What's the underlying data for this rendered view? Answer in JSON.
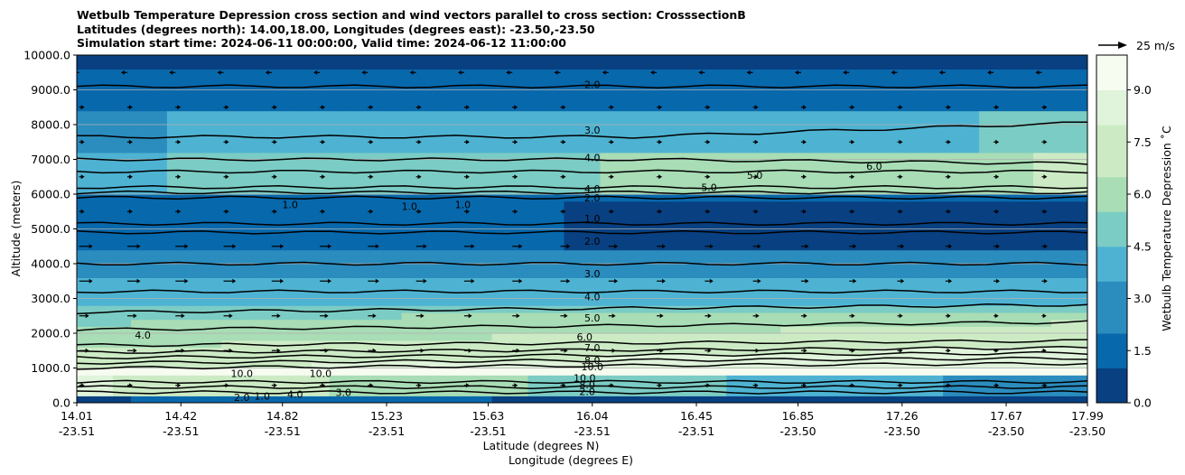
{
  "chart_data": {
    "type": "contour",
    "title_lines": [
      "Wetbulb Temperature Depression cross section and wind vectors parallel to cross section: CrosssectionB",
      "Latitudes (degrees north): 14.00,18.00, Longitudes (degrees east): -23.50,-23.50",
      "Simulation start time: 2024-06-11 00:00:00, Valid time: 2024-06-12 11:00:00"
    ],
    "ylabel": "Altitude (meters)",
    "xlabel": "Latitude (degrees N)",
    "xlabel2": "Longitude (degrees E)",
    "ylim": [
      0,
      10000
    ],
    "yticks": [
      "0.0",
      "1000.0",
      "2000.0",
      "3000.0",
      "4000.0",
      "5000.0",
      "6000.0",
      "7000.0",
      "8000.0",
      "9000.0",
      "10000.0"
    ],
    "ytick_values": [
      0,
      1000,
      2000,
      3000,
      4000,
      5000,
      6000,
      7000,
      8000,
      9000,
      10000
    ],
    "xlim": [
      14.01,
      17.99
    ],
    "xticks": [
      {
        "lat": "14.01",
        "lon": "-23.51",
        "value": 14.01
      },
      {
        "lat": "14.42",
        "lon": "-23.51",
        "value": 14.42
      },
      {
        "lat": "14.82",
        "lon": "-23.51",
        "value": 14.82
      },
      {
        "lat": "15.23",
        "lon": "-23.51",
        "value": 15.23
      },
      {
        "lat": "15.63",
        "lon": "-23.51",
        "value": 15.63
      },
      {
        "lat": "16.04",
        "lon": "-23.51",
        "value": 16.04
      },
      {
        "lat": "16.45",
        "lon": "-23.51",
        "value": 16.45
      },
      {
        "lat": "16.85",
        "lon": "-23.50",
        "value": 16.85
      },
      {
        "lat": "17.26",
        "lon": "-23.50",
        "value": 17.26
      },
      {
        "lat": "17.67",
        "lon": "-23.50",
        "value": 17.67
      },
      {
        "lat": "17.99",
        "lon": "-23.50",
        "value": 17.99
      }
    ],
    "colorbar": {
      "label": "Wetbulb Temperature Depression ˚C",
      "ticks": [
        "0.0",
        "1.5",
        "3.0",
        "4.5",
        "6.0",
        "7.5",
        "9.0"
      ],
      "tick_values": [
        0,
        1.5,
        3.0,
        4.5,
        6.0,
        7.5,
        9.0
      ],
      "range": [
        0,
        10
      ],
      "colors": [
        "#084081",
        "#0868ac",
        "#2b8cbe",
        "#4eb3d3",
        "#7bccc4",
        "#a8ddb5",
        "#ccebc5",
        "#e0f3db",
        "#f7fcf0"
      ]
    },
    "wind_key": "25 m/s",
    "contour_labels": [
      {
        "text": "2.0",
        "lat": 16.04,
        "alt": 9150
      },
      {
        "text": "3.0",
        "lat": 16.04,
        "alt": 7850
      },
      {
        "text": "4.0",
        "lat": 16.04,
        "alt": 7050
      },
      {
        "text": "4.0",
        "lat": 16.04,
        "alt": 6150
      },
      {
        "text": "2.0",
        "lat": 16.04,
        "alt": 5900
      },
      {
        "text": "2.0",
        "lat": 16.04,
        "alt": 4650
      },
      {
        "text": "3.0",
        "lat": 16.04,
        "alt": 3720
      },
      {
        "text": "4.0",
        "lat": 16.04,
        "alt": 3050
      },
      {
        "text": "5.0",
        "lat": 16.04,
        "alt": 2440
      },
      {
        "text": "6.0",
        "lat": 16.01,
        "alt": 1890
      },
      {
        "text": "7.0",
        "lat": 16.04,
        "alt": 1580
      },
      {
        "text": "8.0",
        "lat": 16.04,
        "alt": 1220
      },
      {
        "text": "10.0",
        "lat": 16.04,
        "alt": 1040
      },
      {
        "text": "10.0",
        "lat": 16.01,
        "alt": 720
      },
      {
        "text": "8.0",
        "lat": 16.02,
        "alt": 520
      },
      {
        "text": "2.0",
        "lat": 16.02,
        "alt": 320
      },
      {
        "text": "1.0",
        "lat": 14.85,
        "alt": 5700
      },
      {
        "text": "1.0",
        "lat": 15.32,
        "alt": 5650
      },
      {
        "text": "1.0",
        "lat": 15.53,
        "alt": 5700
      },
      {
        "text": "1.0",
        "lat": 16.04,
        "alt": 5300
      },
      {
        "text": "5.0",
        "lat": 16.68,
        "alt": 6550
      },
      {
        "text": "5.0",
        "lat": 16.5,
        "alt": 6200
      },
      {
        "text": "6.0",
        "lat": 17.15,
        "alt": 6800
      },
      {
        "text": "4.0",
        "lat": 14.27,
        "alt": 1950
      },
      {
        "text": "10.0",
        "lat": 14.66,
        "alt": 850
      },
      {
        "text": "10.0",
        "lat": 14.97,
        "alt": 850
      },
      {
        "text": "2.0",
        "lat": 14.66,
        "alt": 150
      },
      {
        "text": "4.0",
        "lat": 14.87,
        "alt": 250
      },
      {
        "text": "1.0",
        "lat": 14.74,
        "alt": 200
      },
      {
        "text": "3.0",
        "lat": 15.06,
        "alt": 300
      }
    ]
  }
}
